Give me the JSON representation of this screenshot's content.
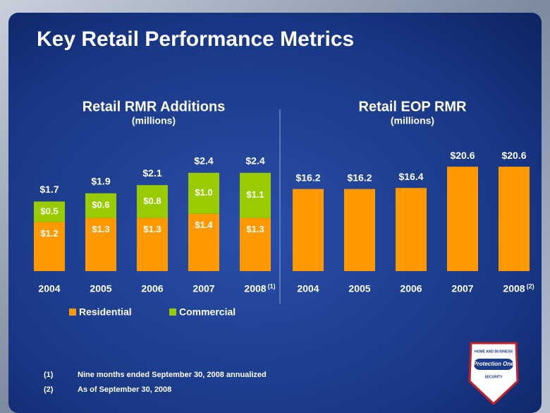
{
  "title": "Key Retail Performance Metrics",
  "chart_data": [
    {
      "type": "stacked-bar",
      "title": "Retail RMR Additions",
      "subtitle": "(millions)",
      "categories": [
        "2004",
        "2005",
        "2006",
        "2007",
        "2008"
      ],
      "footnote_refs": [
        null,
        null,
        null,
        null,
        "(1)"
      ],
      "series": [
        {
          "name": "Residential",
          "color": "#ff9900",
          "values": [
            1.2,
            1.3,
            1.3,
            1.4,
            1.3
          ],
          "value_labels": [
            "$1.2",
            "$1.3",
            "$1.3",
            "$1.4",
            "$1.3"
          ]
        },
        {
          "name": "Commercial",
          "color": "#99cc00",
          "values": [
            0.5,
            0.6,
            0.8,
            1.0,
            1.1
          ],
          "value_labels": [
            "$0.5",
            "$0.6",
            "$0.8",
            "$1.0",
            "$1.1"
          ]
        }
      ],
      "totals": [
        1.7,
        1.9,
        2.1,
        2.4,
        2.4
      ],
      "total_labels": [
        "$1.7",
        "$1.9",
        "$2.1",
        "$2.4",
        "$2.4"
      ]
    },
    {
      "type": "bar",
      "title": "Retail EOP RMR",
      "subtitle": "(millions)",
      "categories": [
        "2004",
        "2005",
        "2006",
        "2007",
        "2008"
      ],
      "footnote_refs": [
        null,
        null,
        null,
        null,
        "(2)"
      ],
      "color": "#ff9900",
      "values": [
        16.2,
        16.2,
        16.4,
        20.6,
        20.6
      ],
      "value_labels": [
        "$16.2",
        "$16.2",
        "$16.4",
        "$20.6",
        "$20.6"
      ]
    }
  ],
  "footnotes": [
    {
      "mark": "(1)",
      "text": "Nine months ended September 30, 2008 annualized"
    },
    {
      "mark": "(2)",
      "text": "As of September 30, 2008"
    }
  ],
  "logo": {
    "top": "HOME AND BUSINESS",
    "name": "Protection One",
    "bottom": "SECURITY"
  }
}
